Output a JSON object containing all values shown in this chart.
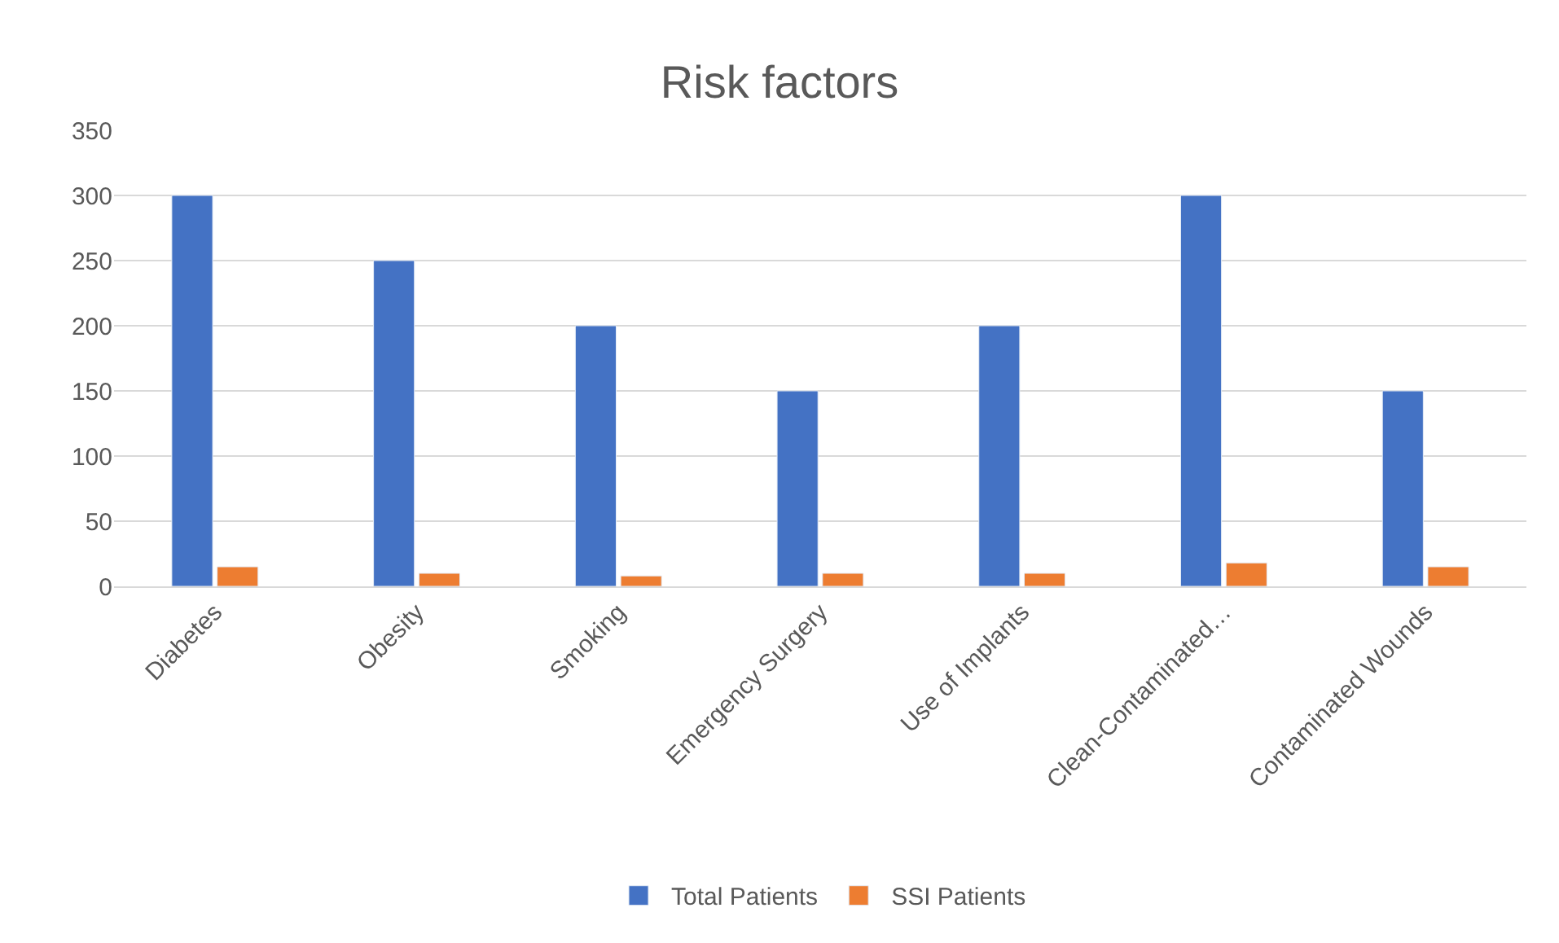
{
  "chart_data": {
    "type": "bar",
    "title": "Risk factors",
    "categories": [
      "Diabetes",
      "Obesity",
      "Smoking",
      "Emergency Surgery",
      "Use of Implants",
      "Clean-Contaminated…",
      "Contaminated Wounds"
    ],
    "series": [
      {
        "name": "Total Patients",
        "color": "#4472c4",
        "values": [
          300,
          250,
          200,
          150,
          200,
          300,
          150
        ]
      },
      {
        "name": "SSI Patients",
        "color": "#ed7d31",
        "values": [
          15,
          10,
          8,
          10,
          10,
          18,
          15
        ]
      }
    ],
    "ylim": [
      0,
      350
    ],
    "yticks": [
      0,
      50,
      100,
      150,
      200,
      250,
      300,
      350
    ],
    "grid": "y",
    "legend": "bottom"
  }
}
